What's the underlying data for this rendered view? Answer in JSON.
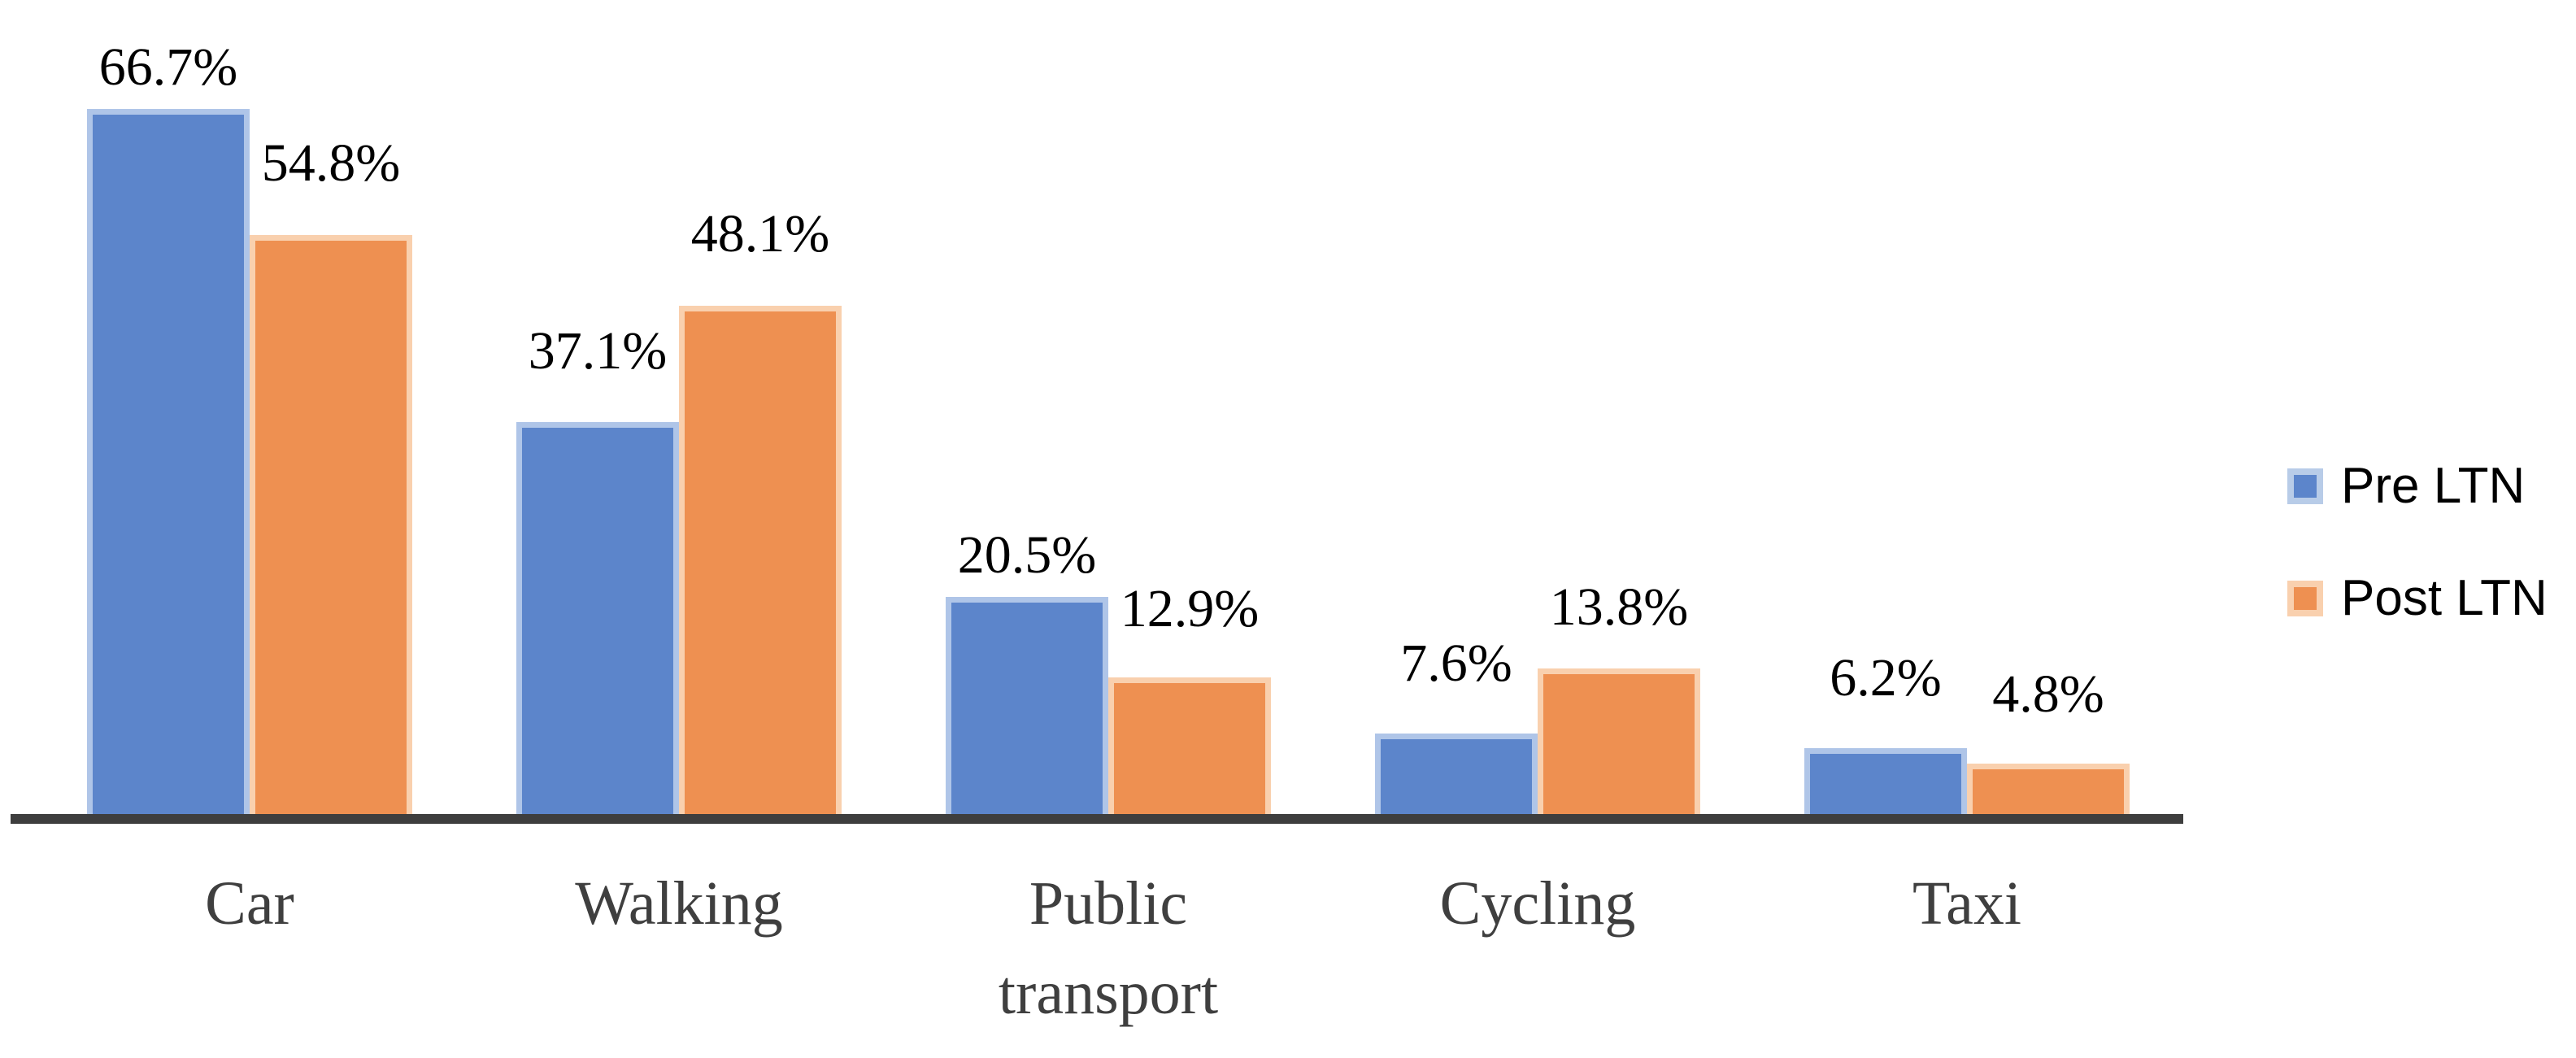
{
  "chart_data": {
    "type": "bar",
    "categories": [
      "Car",
      "Walking",
      "Public transport",
      "Cycling",
      "Taxi"
    ],
    "series": [
      {
        "name": "Pre LTN",
        "color": "#5C85CB",
        "border_color": "#AFC5E8",
        "values": [
          66.7,
          37.1,
          20.5,
          7.6,
          6.2
        ],
        "labels": [
          "66.7%",
          "37.1%",
          "20.5%",
          "7.6%",
          "6.2%"
        ]
      },
      {
        "name": "Post LTN",
        "color": "#EE9051",
        "border_color": "#F9D0AE",
        "values": [
          54.8,
          48.1,
          12.9,
          13.8,
          4.8
        ],
        "labels": [
          "54.8%",
          "48.1%",
          "12.9%",
          "13.8%",
          "4.8%"
        ]
      }
    ],
    "value_suffix": "%",
    "title": "",
    "xlabel": "",
    "ylabel": "",
    "ylim": [
      0,
      70
    ],
    "grid": false,
    "y_axis_visible": false,
    "x_axis_line_color": "#3E3E3E",
    "legend_position": "right",
    "data_label_color": "#000000",
    "category_label_color": "#3F3F3F"
  }
}
